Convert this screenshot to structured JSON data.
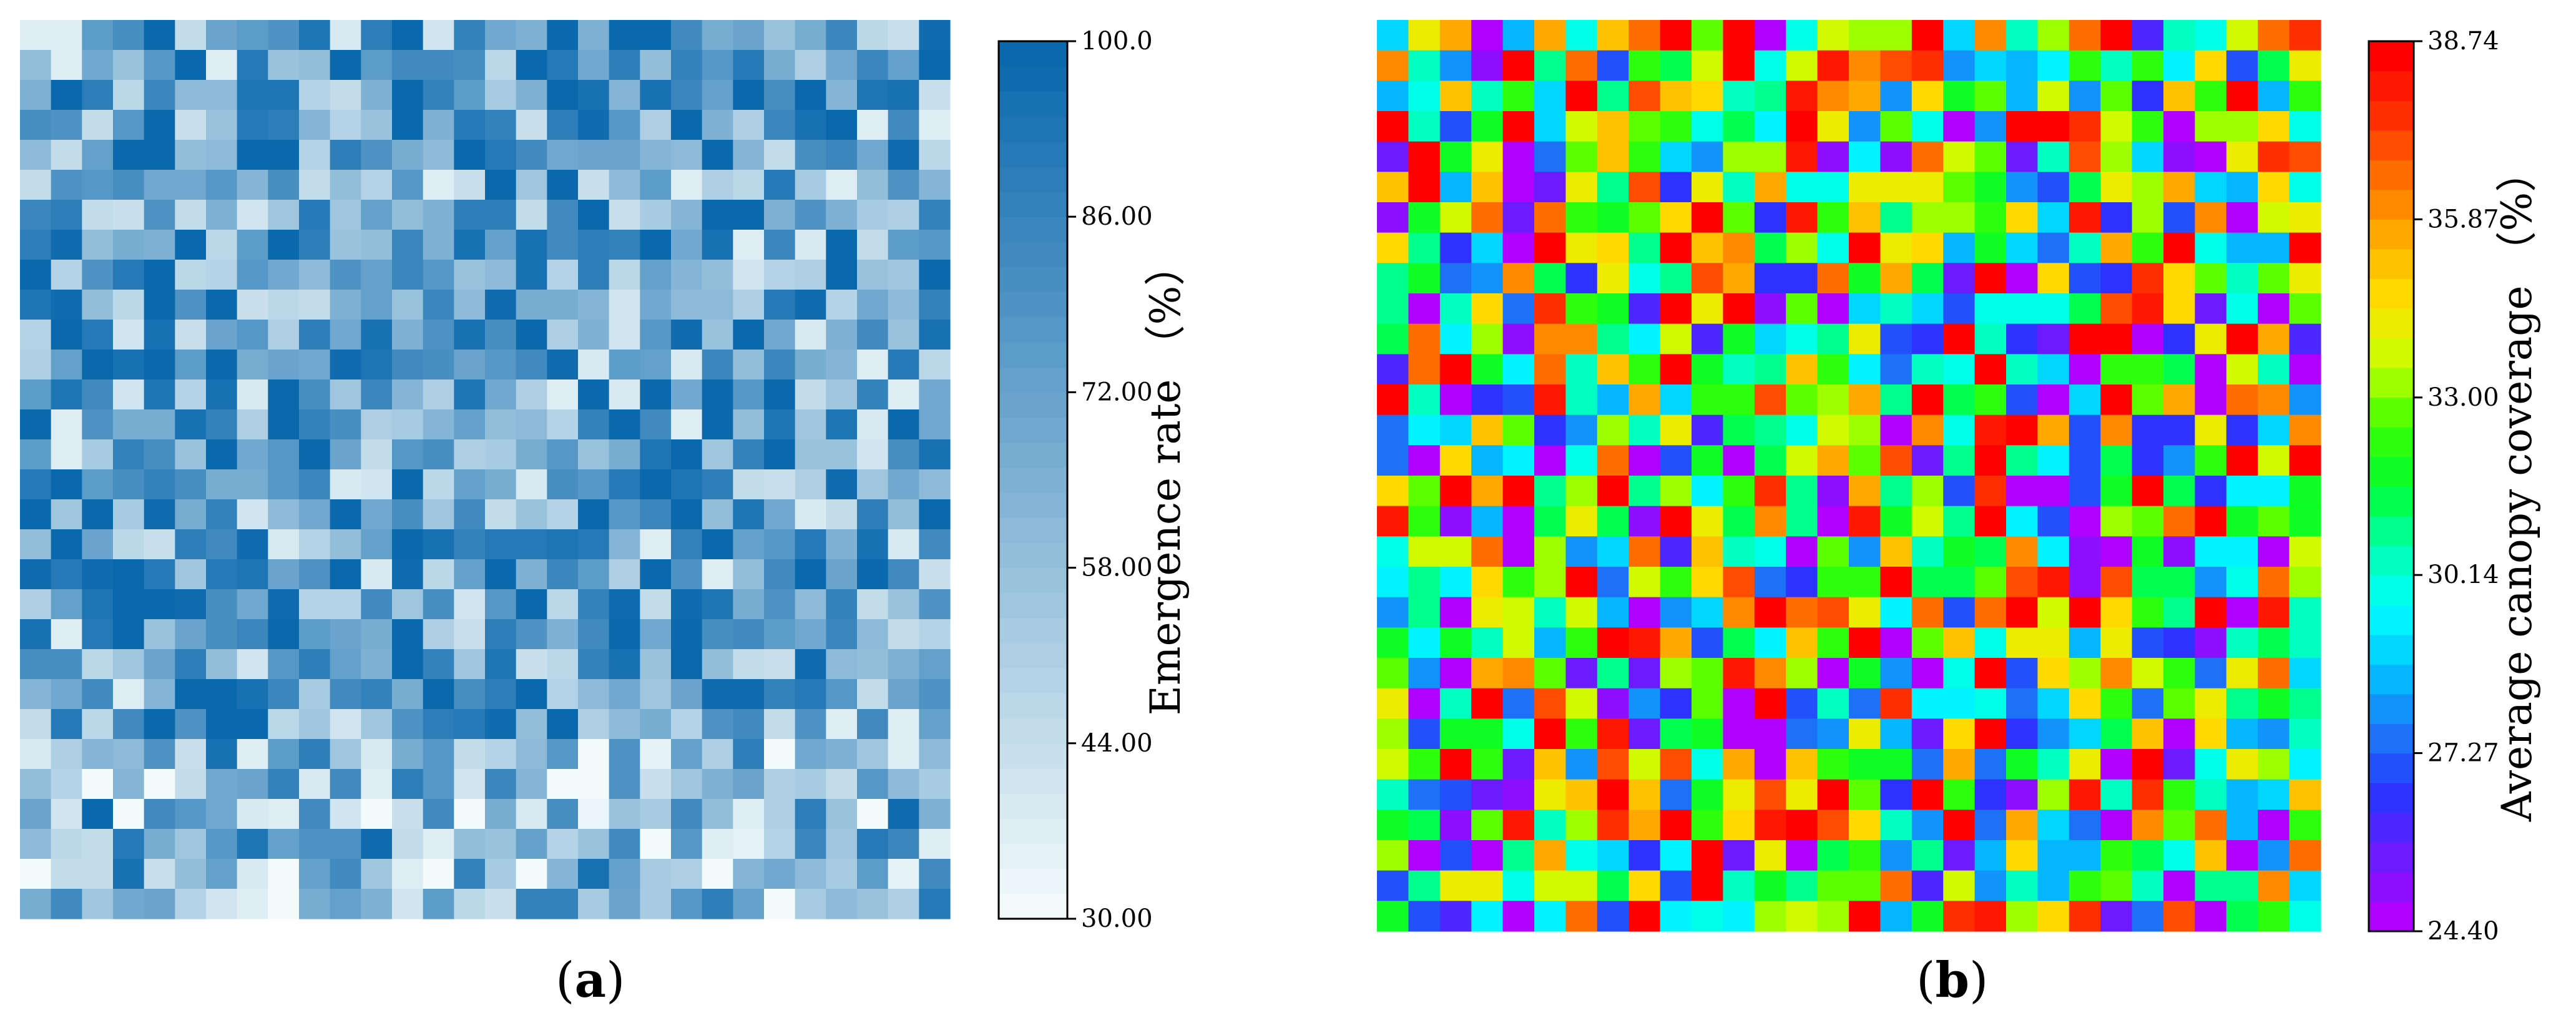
{
  "chart_data": [
    {
      "type": "heatmap",
      "panel_label": "a",
      "rows": 30,
      "cols": 30,
      "colorbar": {
        "label": "Emergence rate",
        "unit": "（%）",
        "min": 30.0,
        "max": 100.0,
        "ticks": [
          "100.0",
          "86.00",
          "72.00",
          "58.00",
          "44.00",
          "30.00"
        ],
        "tick_values": [
          100,
          86,
          72,
          58,
          44,
          30
        ],
        "levels": 35,
        "color_low": "#f2fafa",
        "color_high": "#0a68ad"
      },
      "grid": false
    },
    {
      "type": "heatmap",
      "panel_label": "b",
      "rows": 30,
      "cols": 30,
      "colorbar": {
        "label": "Average canopy coverage",
        "unit": "（%）",
        "min": 24.4,
        "max": 38.74,
        "ticks": [
          "38.74",
          "35.87",
          "33.00",
          "30.14",
          "27.27",
          "24.40"
        ],
        "tick_values": [
          38.74,
          35.87,
          33.0,
          30.14,
          27.27,
          24.4
        ],
        "levels": 30,
        "colormap": [
          "#b000ff",
          "#6a1cff",
          "#2a34ff",
          "#1c78f5",
          "#00c0ff",
          "#00ffff",
          "#00ffb0",
          "#00ff30",
          "#40ff00",
          "#c8ff00",
          "#ffe000",
          "#ffb000",
          "#ff7000",
          "#ff3000",
          "#ff0000"
        ]
      },
      "grid": false
    }
  ]
}
